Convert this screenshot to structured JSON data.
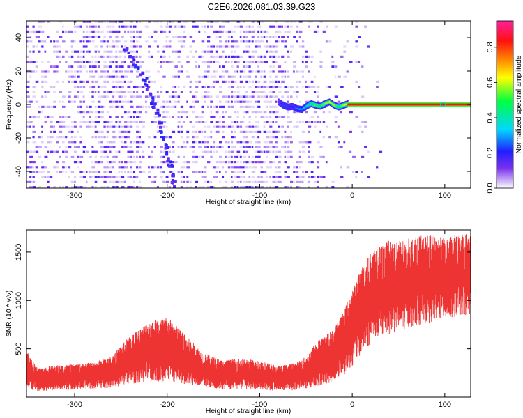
{
  "figure_title": "C2E6.2026.081.03.39.G23",
  "colors": {
    "snr_trace": "#ee3333",
    "spectrogram_noise": "#6a1ee8",
    "background": "#ffffff"
  },
  "chart_data": [
    {
      "type": "heatmap",
      "title": "C2E6.2026.081.03.39.G23",
      "xlabel": "Height of straight line (km)",
      "ylabel": "Frequency (Hz)",
      "xlim": [
        -352,
        128
      ],
      "ylim": [
        -50,
        50
      ],
      "x_ticks": [
        -300,
        -200,
        -100,
        0,
        100
      ],
      "x_tick_labels": [
        "-300",
        "-200",
        "-100",
        "0",
        "100"
      ],
      "y_ticks": [
        -40,
        -20,
        0,
        20,
        40
      ],
      "y_tick_labels": [
        "-40",
        "-20",
        "0",
        "20",
        "40"
      ],
      "colorbar": {
        "label": "Normalized spectral amplitude",
        "range": [
          0,
          0.95
        ],
        "ticks": [
          0.0,
          0.2,
          0.4,
          0.6,
          0.8
        ],
        "tick_labels": [
          "0.0",
          "0.2",
          "0.4",
          "0.6",
          "0.8"
        ],
        "colormap": "rainbow: white-violet-blue-cyan-green-yellow-orange-red-magenta"
      },
      "features": {
        "carrier_line": {
          "frequency_hz": 0,
          "x_start_km": -5,
          "x_end_km": 128,
          "amplitude": 0.88
        },
        "wavy_signal": {
          "x_km": [
            -80,
            -75,
            -70,
            -65,
            -60,
            -55,
            -50,
            -45,
            -40,
            -35,
            -30,
            -25,
            -20,
            -15,
            -10,
            -5
          ],
          "frequency_hz": [
            1.5,
            -0.5,
            -1.5,
            -1.2,
            -2.5,
            -3.0,
            -1.0,
            0.5,
            -0.5,
            -1.0,
            0.5,
            1.5,
            -0.5,
            -1.5,
            -0.5,
            0.5
          ],
          "amplitude": [
            0.15,
            0.25,
            0.25,
            0.2,
            0.3,
            0.3,
            0.4,
            0.5,
            0.55,
            0.5,
            0.6,
            0.65,
            0.6,
            0.5,
            0.6,
            0.7
          ]
        },
        "diagonal_streak": {
          "points_km_hz": [
            [
              -248,
              34
            ],
            [
              -225,
              15
            ],
            [
              -213,
              -5
            ],
            [
              -200,
              -30
            ],
            [
              -193,
              -50
            ]
          ],
          "amplitude": 0.12
        },
        "noise": {
          "x_range_km": [
            -352,
            30
          ],
          "dense_until_km": -80
        }
      }
    },
    {
      "type": "line",
      "xlabel": "Height of straight line (km)",
      "ylabel": "SNR (10 * v/v)",
      "xlim": [
        -352,
        128
      ],
      "ylim": [
        0,
        1730
      ],
      "x_ticks": [
        -300,
        -200,
        -100,
        0,
        100
      ],
      "x_tick_labels": [
        "-300",
        "-200",
        "-100",
        "0",
        "100"
      ],
      "y_ticks": [
        500,
        1000,
        1500
      ],
      "y_tick_labels": [
        "500",
        "1000",
        "1500"
      ],
      "series": [
        {
          "name": "SNR",
          "envelope_x_km": [
            -352,
            -340,
            -320,
            -300,
            -280,
            -260,
            -240,
            -220,
            -200,
            -180,
            -160,
            -140,
            -120,
            -100,
            -80,
            -60,
            -50,
            -40,
            -30,
            -20,
            -10,
            0,
            10,
            20,
            40,
            60,
            80,
            100,
            120,
            128
          ],
          "envelope_low": [
            15,
            20,
            25,
            30,
            35,
            40,
            45,
            45,
            45,
            40,
            35,
            30,
            25,
            20,
            20,
            20,
            25,
            30,
            45,
            60,
            100,
            180,
            280,
            380,
            480,
            550,
            600,
            650,
            700,
            700
          ],
          "envelope_high": [
            480,
            300,
            330,
            340,
            360,
            420,
            640,
            780,
            840,
            640,
            450,
            380,
            400,
            380,
            320,
            360,
            420,
            560,
            640,
            700,
            900,
            1100,
            1350,
            1500,
            1620,
            1640,
            1680,
            1650,
            1700,
            1700
          ]
        }
      ]
    }
  ]
}
